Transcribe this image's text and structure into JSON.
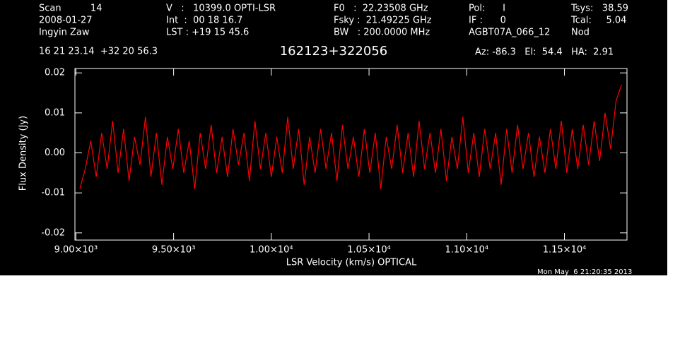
{
  "chart_data": {
    "type": "line",
    "title": "162123+322056",
    "header_columns": [
      [
        "Scan          14",
        "2008-01-27",
        "Ingyin Zaw"
      ],
      [
        "V   :   10399.0 OPTI-LSR",
        "Int  :  00 18 16.7",
        "LST : +19 15 45.6"
      ],
      [
        "F0   :  22.23508 GHz",
        "Fsky :  21.49225 GHz",
        "BW   : 200.0000 MHz"
      ],
      [
        "Pol:      I",
        "IF :      0",
        "AGBT07A_066_12"
      ],
      [
        "Tsys:   38.59",
        "Tcal:     5.04",
        "Nod"
      ]
    ],
    "position": "16 21 23.14  +32 20 56.3",
    "pointing": "Az: -86.3   El:  54.4   HA:  2.91",
    "timestamp": "Mon May  6 21:20:35 2013",
    "xlabel": "LSR Velocity (km/s) OPTICAL",
    "ylabel": "Flux Density (Jy)",
    "xlim": [
      8995,
      11820
    ],
    "ylim": [
      -0.0218,
      0.0211
    ],
    "xticks": [
      {
        "value": 9000,
        "label": "9.00×10³"
      },
      {
        "value": 9500,
        "label": "9.50×10³"
      },
      {
        "value": 10000,
        "label": "1.00×10⁴"
      },
      {
        "value": 10500,
        "label": "1.05×10⁴"
      },
      {
        "value": 11000,
        "label": "1.10×10⁴"
      },
      {
        "value": 11500,
        "label": "1.15×10⁴"
      }
    ],
    "yticks": [
      -0.02,
      -0.01,
      {
        "value": 0,
        "label": "0.00"
      },
      0.01,
      0.02
    ],
    "series": [
      {
        "color": "#ff0000",
        "x": [
          9020,
          9048,
          9076,
          9104,
          9132,
          9160,
          9188,
          9216,
          9244,
          9272,
          9300,
          9328,
          9356,
          9384,
          9412,
          9440,
          9468,
          9496,
          9524,
          9552,
          9580,
          9608,
          9636,
          9664,
          9692,
          9720,
          9748,
          9776,
          9804,
          9832,
          9860,
          9888,
          9916,
          9944,
          9972,
          10000,
          10028,
          10056,
          10084,
          10112,
          10140,
          10168,
          10196,
          10224,
          10252,
          10280,
          10308,
          10336,
          10364,
          10392,
          10420,
          10448,
          10476,
          10504,
          10532,
          10560,
          10588,
          10616,
          10644,
          10672,
          10700,
          10728,
          10756,
          10784,
          10812,
          10840,
          10868,
          10896,
          10924,
          10952,
          10980,
          11008,
          11036,
          11064,
          11092,
          11120,
          11148,
          11176,
          11204,
          11232,
          11260,
          11288,
          11316,
          11344,
          11372,
          11400,
          11428,
          11456,
          11484,
          11512,
          11540,
          11568,
          11596,
          11624,
          11652,
          11680,
          11708,
          11736,
          11764,
          11792
        ],
        "values": [
          -0.009,
          -0.004,
          0.003,
          -0.006,
          0.005,
          -0.004,
          0.008,
          -0.005,
          0.006,
          -0.007,
          0.004,
          -0.003,
          0.009,
          -0.006,
          0.005,
          -0.008,
          0.004,
          -0.004,
          0.006,
          -0.005,
          0.003,
          -0.009,
          0.005,
          -0.004,
          0.007,
          -0.005,
          0.004,
          -0.006,
          0.006,
          -0.003,
          0.005,
          -0.007,
          0.008,
          -0.004,
          0.005,
          -0.006,
          0.004,
          -0.005,
          0.009,
          -0.004,
          0.006,
          -0.008,
          0.004,
          -0.005,
          0.006,
          -0.004,
          0.005,
          -0.007,
          0.007,
          -0.004,
          0.004,
          -0.006,
          0.006,
          -0.005,
          0.005,
          -0.009,
          0.004,
          -0.004,
          0.007,
          -0.005,
          0.005,
          -0.006,
          0.008,
          -0.004,
          0.005,
          -0.005,
          0.006,
          -0.007,
          0.004,
          -0.004,
          0.009,
          -0.005,
          0.005,
          -0.006,
          0.006,
          -0.004,
          0.005,
          -0.008,
          0.006,
          -0.005,
          0.007,
          -0.004,
          0.005,
          -0.006,
          0.004,
          -0.005,
          0.006,
          -0.004,
          0.008,
          -0.005,
          0.006,
          -0.004,
          0.007,
          -0.003,
          0.008,
          -0.002,
          0.01,
          0.001,
          0.013,
          0.017
        ]
      }
    ]
  }
}
